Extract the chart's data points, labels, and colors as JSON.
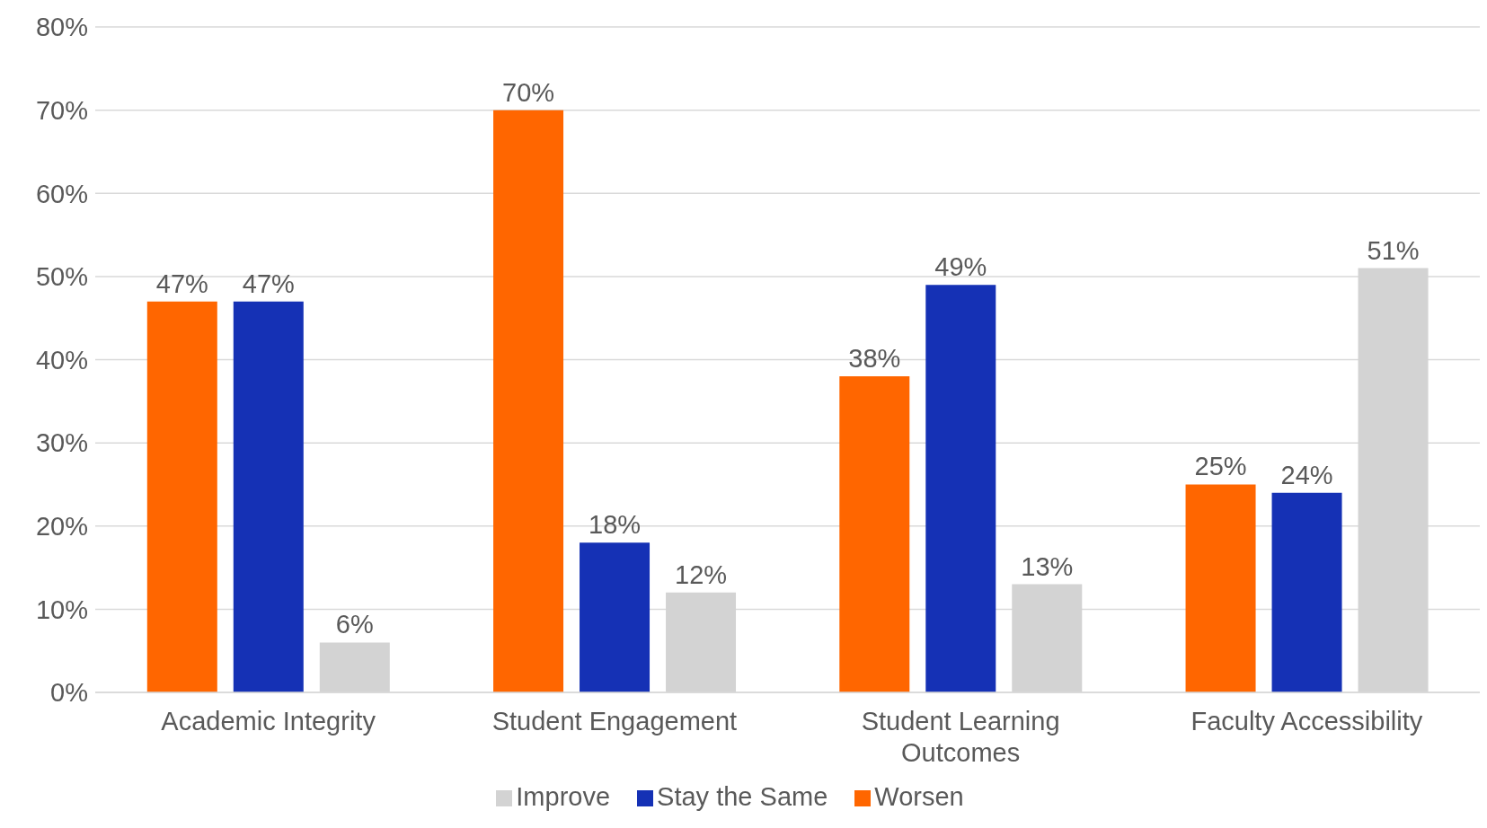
{
  "chart_data": {
    "type": "bar",
    "categories": [
      "Academic Integrity",
      "Student Engagement",
      "Student Learning Outcomes",
      "Faculty Accessibility"
    ],
    "series": [
      {
        "name": "Worsen",
        "color": "#ff6600",
        "values": [
          47,
          70,
          38,
          25
        ],
        "value_labels": [
          "47%",
          "70%",
          "38%",
          "25%"
        ]
      },
      {
        "name": "Stay the Same",
        "color": "#1531b5",
        "values": [
          47,
          18,
          49,
          24
        ],
        "value_labels": [
          "47%",
          "18%",
          "49%",
          "24%"
        ]
      },
      {
        "name": "Improve",
        "color": "#d3d3d3",
        "values": [
          6,
          12,
          13,
          51
        ],
        "value_labels": [
          "6%",
          "12%",
          "13%",
          "51%"
        ]
      }
    ],
    "ylim": [
      0,
      80
    ],
    "yticks": [
      {
        "value": 0,
        "label": "0%"
      },
      {
        "value": 10,
        "label": "10%"
      },
      {
        "value": 20,
        "label": "20%"
      },
      {
        "value": 30,
        "label": "30%"
      },
      {
        "value": 40,
        "label": "40%"
      },
      {
        "value": 50,
        "label": "50%"
      },
      {
        "value": 60,
        "label": "60%"
      },
      {
        "value": 70,
        "label": "70%"
      },
      {
        "value": 80,
        "label": "80%"
      }
    ],
    "grid": "y",
    "legend": "bottom"
  }
}
